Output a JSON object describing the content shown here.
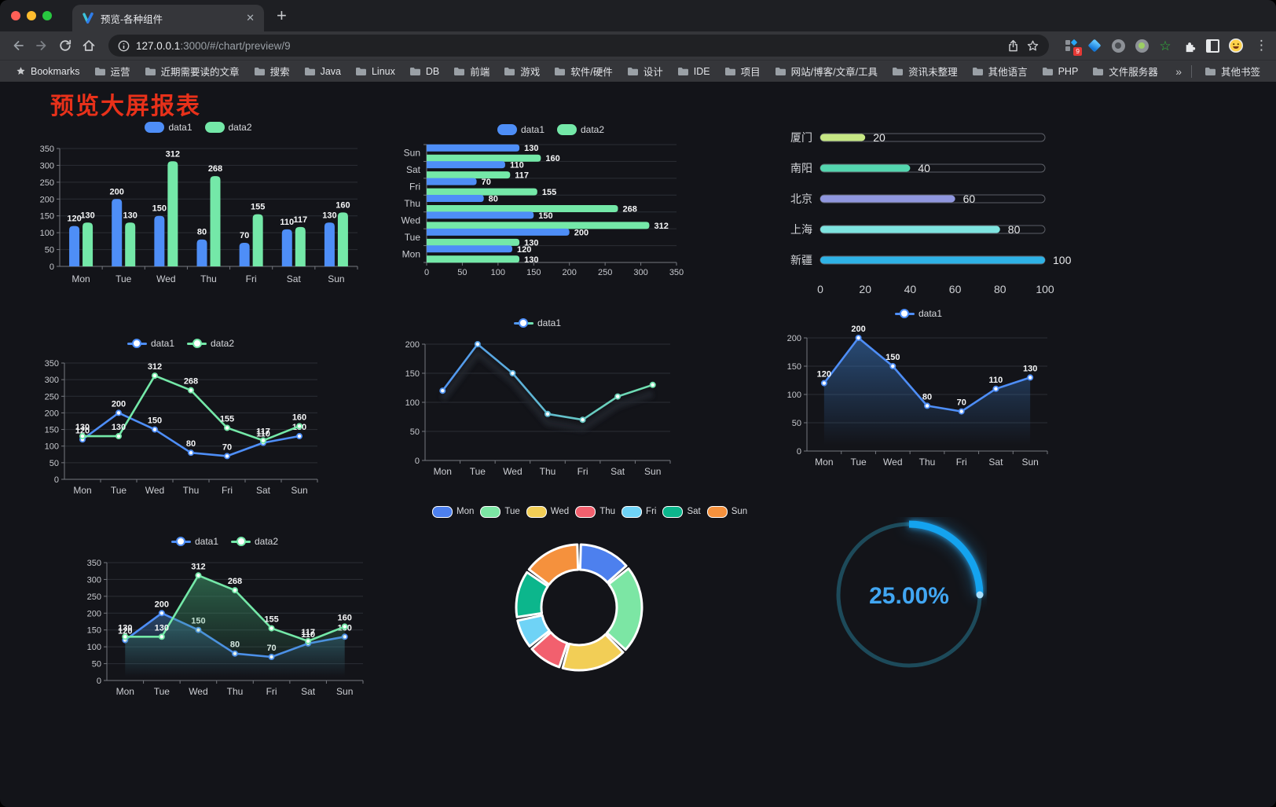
{
  "browser": {
    "tab_title": "预览-各种组件",
    "tab_close": "✕",
    "new_tab": "+",
    "url_host": "127.0.0.1",
    "url_rest": ":3000/#/chart/preview/9",
    "bookmarks_label": "Bookmarks",
    "folders": [
      "运营",
      "近期需要读的文章",
      "搜索",
      "Java",
      "Linux",
      "DB",
      "前端",
      "游戏",
      "软件/硬件",
      "设计",
      "IDE",
      "项目",
      "网站/博客/文章/工具",
      "资讯未整理",
      "其他语言",
      "PHP",
      "文件服务器"
    ],
    "overflow_chevron": "»",
    "other_bookmarks": "其他书签",
    "extension_badge": "9",
    "menu_icon": "⋮",
    "green_star_icon": "☆"
  },
  "page": {
    "title": "预览大屏报表",
    "title_color": "#e8311a",
    "background": "#131419"
  },
  "palette": {
    "blue": "#4e8ef7",
    "green": "#74e8a8",
    "axis": "#75787f",
    "grid": "#2b2e35",
    "tick_text": "#c7c9ce",
    "value_text": "#f5f6f7"
  },
  "chart_data": [
    {
      "name": "grouped-bar",
      "type": "bar",
      "categories": [
        "Mon",
        "Tue",
        "Wed",
        "Thu",
        "Fri",
        "Sat",
        "Sun"
      ],
      "series": [
        {
          "name": "data1",
          "color": "#4e8ef7",
          "values": [
            120,
            200,
            150,
            80,
            70,
            110,
            130
          ]
        },
        {
          "name": "data2",
          "color": "#74e8a8",
          "values": [
            130,
            130,
            312,
            268,
            155,
            117,
            160
          ]
        }
      ],
      "ylim": [
        0,
        350
      ],
      "yticks": [
        0,
        50,
        100,
        150,
        200,
        250,
        300,
        350
      ],
      "legend_position": "top",
      "value_labels": true,
      "grid": true
    },
    {
      "name": "horizontal-bar",
      "type": "hbar",
      "categories": [
        "Mon",
        "Tue",
        "Wed",
        "Thu",
        "Fri",
        "Sat",
        "Sun"
      ],
      "categories_top_to_bottom": [
        "Sun",
        "Sat",
        "Fri",
        "Thu",
        "Wed",
        "Tue",
        "Mon"
      ],
      "series": [
        {
          "name": "data1",
          "color": "#4e8ef7",
          "values": [
            120,
            200,
            150,
            80,
            70,
            110,
            130
          ]
        },
        {
          "name": "data2",
          "color": "#74e8a8",
          "values": [
            130,
            130,
            312,
            268,
            155,
            117,
            160
          ]
        }
      ],
      "xlim": [
        0,
        350
      ],
      "xticks": [
        0,
        50,
        100,
        150,
        200,
        250,
        300,
        350
      ],
      "legend_position": "top",
      "value_labels": true,
      "grid": true
    },
    {
      "name": "progress-bars",
      "type": "progress",
      "max": 100,
      "items": [
        {
          "label": "厦门",
          "value": 20,
          "color": "#c6e784"
        },
        {
          "label": "南阳",
          "value": 40,
          "color": "#54d6af"
        },
        {
          "label": "北京",
          "value": 60,
          "color": "#9097df"
        },
        {
          "label": "上海",
          "value": 80,
          "color": "#7ee4e0"
        },
        {
          "label": "新疆",
          "value": 100,
          "color": "#2eb2e6"
        }
      ],
      "xticks": [
        0,
        20,
        40,
        60,
        80,
        100
      ]
    },
    {
      "name": "dual-line",
      "type": "line",
      "categories": [
        "Mon",
        "Tue",
        "Wed",
        "Thu",
        "Fri",
        "Sat",
        "Sun"
      ],
      "series": [
        {
          "name": "data1",
          "color": "#4e8ef7",
          "values": [
            120,
            200,
            150,
            80,
            70,
            110,
            130
          ]
        },
        {
          "name": "data2",
          "color": "#74e8a8",
          "values": [
            130,
            130,
            312,
            268,
            155,
            117,
            160
          ]
        }
      ],
      "ylim": [
        0,
        350
      ],
      "yticks": [
        0,
        50,
        100,
        150,
        200,
        250,
        300,
        350
      ],
      "legend_position": "top",
      "value_labels": true,
      "markers": true,
      "grid": true
    },
    {
      "name": "gradient-line",
      "type": "line",
      "categories": [
        "Mon",
        "Tue",
        "Wed",
        "Thu",
        "Fri",
        "Sat",
        "Sun"
      ],
      "series": [
        {
          "name": "data1",
          "color": "#4e8ef7",
          "values": [
            120,
            200,
            150,
            80,
            70,
            110,
            130
          ]
        }
      ],
      "gradient": [
        "#4e8ef7",
        "#74e8a8"
      ],
      "shadow": true,
      "ylim": [
        0,
        200
      ],
      "yticks": [
        0,
        50,
        100,
        150,
        200
      ],
      "legend_position": "top",
      "value_labels": false,
      "markers": true,
      "grid": true
    },
    {
      "name": "area-line-single",
      "type": "line",
      "categories": [
        "Mon",
        "Tue",
        "Wed",
        "Thu",
        "Fri",
        "Sat",
        "Sun"
      ],
      "series": [
        {
          "name": "data1",
          "color": "#4e8ef7",
          "area": true,
          "area_color": "#3a78c2",
          "values": [
            120,
            200,
            150,
            80,
            70,
            110,
            130
          ]
        }
      ],
      "ylim": [
        0,
        200
      ],
      "yticks": [
        0,
        50,
        100,
        150,
        200
      ],
      "legend_position": "top",
      "value_labels": true,
      "markers": true,
      "grid": true
    },
    {
      "name": "area-line-dual",
      "type": "line",
      "categories": [
        "Mon",
        "Tue",
        "Wed",
        "Thu",
        "Fri",
        "Sat",
        "Sun"
      ],
      "series": [
        {
          "name": "data1",
          "color": "#4e8ef7",
          "area": true,
          "area_color": "#3c6ea8",
          "values": [
            120,
            200,
            150,
            80,
            70,
            110,
            130
          ]
        },
        {
          "name": "data2",
          "color": "#74e8a8",
          "area": true,
          "area_color": "#3f9e6e",
          "values": [
            130,
            130,
            312,
            268,
            155,
            117,
            160
          ]
        }
      ],
      "ylim": [
        0,
        350
      ],
      "yticks": [
        0,
        50,
        100,
        150,
        200,
        250,
        300,
        350
      ],
      "legend_position": "top",
      "value_labels": true,
      "markers": true,
      "grid": true
    },
    {
      "name": "donut",
      "type": "pie",
      "inner_radius_ratio": 0.6,
      "labels": [
        "Mon",
        "Tue",
        "Wed",
        "Thu",
        "Fri",
        "Sat",
        "Sun"
      ],
      "values": [
        120,
        200,
        150,
        80,
        70,
        110,
        130
      ],
      "colors": [
        "#4d80ee",
        "#7ce6a4",
        "#f2ce56",
        "#f2606e",
        "#6fd3f6",
        "#0cb68c",
        "#f5913d"
      ],
      "legend_position": "top",
      "border_color": "#ffffff"
    },
    {
      "name": "ring-progress",
      "type": "gauge",
      "value": 25,
      "label": "25.00%",
      "color": "#14a3ef",
      "track_color": "#1d4a5a",
      "text_color": "#41a6f2"
    }
  ]
}
